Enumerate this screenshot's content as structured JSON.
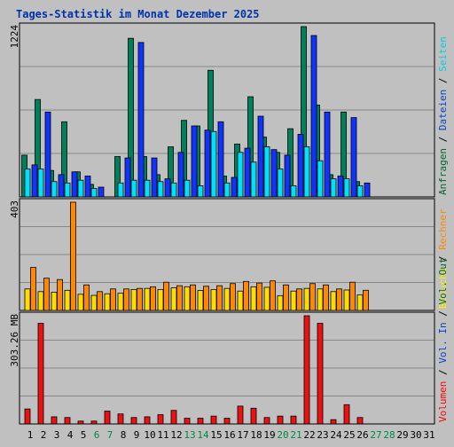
{
  "chart_data": {
    "type": "bar",
    "title": "Tages-Statistik im Monat Dezember 2025",
    "categories": [
      "1",
      "2",
      "3",
      "4",
      "5",
      "6",
      "7",
      "8",
      "9",
      "10",
      "11",
      "12",
      "13",
      "14",
      "15",
      "16",
      "17",
      "18",
      "19",
      "20",
      "21",
      "22",
      "23",
      "24",
      "25",
      "26",
      "27",
      "28",
      "29",
      "30",
      "31"
    ],
    "weekend_days": [
      "6",
      "7",
      "13",
      "14",
      "20",
      "21",
      "27",
      "28"
    ],
    "panels": [
      {
        "name": "hits",
        "ymax_label": "1224",
        "ylim": [
          0,
          1224
        ],
        "grid": true,
        "legend_parts": [
          {
            "text": "Anfragen",
            "color": "#006633"
          },
          {
            "text": " / ",
            "color": "#000000"
          },
          {
            "text": "Dateien",
            "color": "#0044cc"
          },
          {
            "text": " / ",
            "color": "#000000"
          },
          {
            "text": "Seiten",
            "color": "#00ccee"
          }
        ],
        "series": [
          {
            "name": "Anfragen",
            "color": "#00805a",
            "values": [
              300,
              700,
              190,
              540,
              180,
              90,
              0,
              290,
              1140,
              290,
              160,
              360,
              550,
              510,
              910,
              150,
              380,
              720,
              430,
              320,
              490,
              1224,
              660,
              160,
              610,
              110,
              0,
              0,
              0,
              0,
              0
            ]
          },
          {
            "name": "Dateien",
            "color": "#1133ff",
            "values": [
              230,
              610,
              160,
              180,
              150,
              70,
              0,
              280,
              1110,
              280,
              130,
              320,
              510,
              480,
              540,
              140,
              350,
              580,
              340,
              300,
              450,
              1160,
              610,
              150,
              570,
              100,
              0,
              0,
              0,
              0,
              0
            ]
          },
          {
            "name": "Seiten",
            "color": "#00e0ff",
            "values": [
              200,
              200,
              110,
              100,
              120,
              60,
              0,
              100,
              120,
              120,
              110,
              100,
              120,
              80,
              470,
              100,
              320,
              250,
              360,
              200,
              80,
              360,
              260,
              130,
              130,
              80,
              0,
              0,
              0,
              0,
              0
            ]
          }
        ]
      },
      {
        "name": "visits",
        "ymax_label": "403",
        "ylim": [
          0,
          403
        ],
        "grid": true,
        "legend_parts": [
          {
            "text": "Besuche",
            "color": "#ffee00"
          },
          {
            "text": " / ",
            "color": "#000000"
          },
          {
            "text": "Rechner",
            "color": "#ff8800"
          }
        ],
        "series": [
          {
            "name": "Besuche",
            "color": "#ffdd00",
            "values": [
              80,
              70,
              68,
              75,
              60,
              56,
              62,
              64,
              78,
              82,
              78,
              84,
              88,
              74,
              78,
              82,
              72,
              88,
              86,
              55,
              72,
              82,
              80,
              70,
              76,
              58,
              0,
              0,
              0,
              0,
              0
            ]
          },
          {
            "name": "Rechner",
            "color": "#ff8800",
            "values": [
              160,
              120,
              115,
              403,
              95,
              70,
              80,
              80,
              82,
              88,
              105,
              92,
              95,
              90,
              92,
              100,
              108,
              102,
              110,
              95,
              80,
              100,
              95,
              80,
              105,
              75,
              0,
              0,
              0,
              0,
              0
            ]
          }
        ]
      },
      {
        "name": "volume",
        "ymax_label": "303.26 MB",
        "ylim": [
          0,
          303.26
        ],
        "grid": true,
        "legend_parts": [
          {
            "text": "Volumen",
            "color": "#ff0000"
          },
          {
            "text": " / ",
            "color": "#000000"
          },
          {
            "text": "Vol. In",
            "color": "#0044cc"
          },
          {
            "text": " / ",
            "color": "#000000"
          },
          {
            "text": "Vol. Out",
            "color": "#006633"
          }
        ],
        "series": [
          {
            "name": "Volumen",
            "color": "#ee1111",
            "values": [
              42,
              282,
              20,
              18,
              8,
              8,
              36,
              28,
              18,
              20,
              26,
              38,
              16,
              16,
              22,
              16,
              50,
              44,
              18,
              22,
              22,
              303.26,
              282,
              12,
              54,
              18,
              0,
              0,
              0,
              0,
              0
            ]
          }
        ]
      }
    ]
  }
}
